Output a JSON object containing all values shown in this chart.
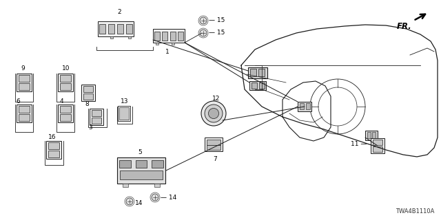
{
  "bg_color": "#ffffff",
  "diagram_code": "TWA4B1110A",
  "line_color": "#1a1a1a",
  "line_width": 0.8,
  "font_size": 6.5,
  "label_color": "#000000",
  "figsize": [
    6.4,
    3.2
  ],
  "dpi": 100
}
